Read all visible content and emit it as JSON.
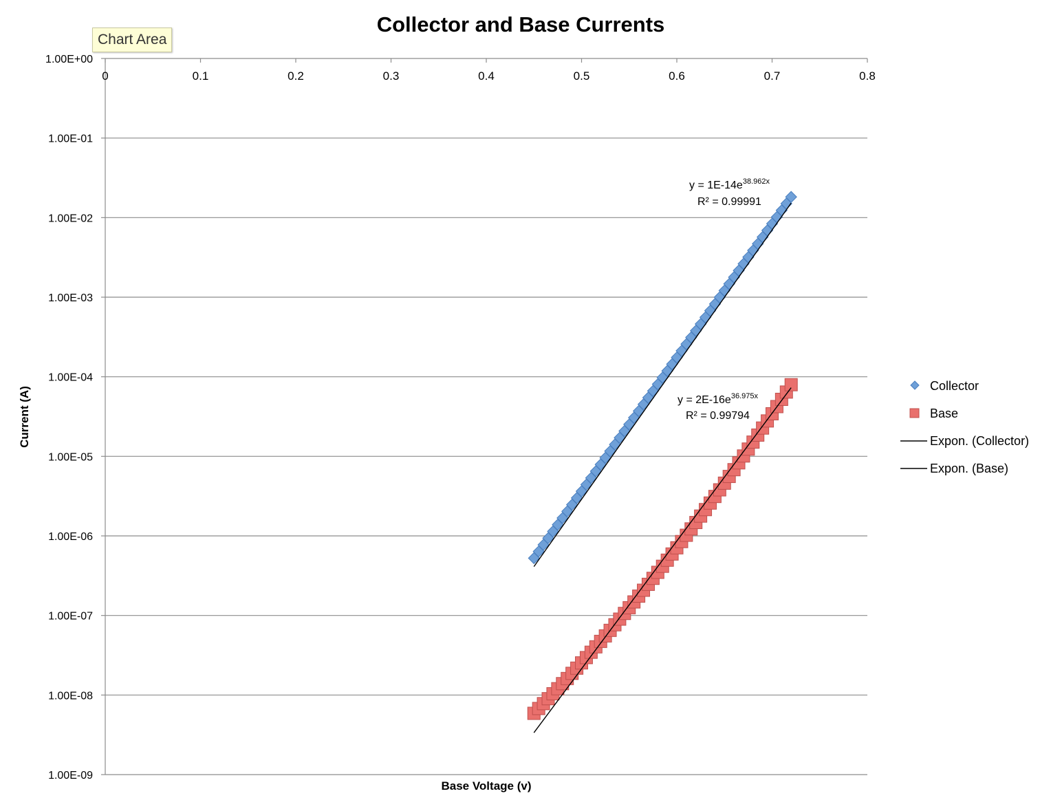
{
  "tooltip": {
    "text": "Chart Area"
  },
  "chart_data": {
    "type": "scatter",
    "title": "Collector and Base Currents",
    "xlabel": "Base Voltage (v)",
    "ylabel": "Current (A)",
    "xlim": [
      0,
      0.8
    ],
    "ylim": [
      1e-09,
      1
    ],
    "yscale": "log",
    "x_ticks": [
      0,
      0.1,
      0.2,
      0.3,
      0.4,
      0.5,
      0.6,
      0.7,
      0.8
    ],
    "x_tick_labels": [
      "0",
      "0.1",
      "0.2",
      "0.3",
      "0.4",
      "0.5",
      "0.6",
      "0.7",
      "0.8"
    ],
    "y_ticks": [
      1,
      0.1,
      0.01,
      0.001,
      0.0001,
      1e-05,
      1e-06,
      1e-07,
      1e-08,
      1e-09
    ],
    "y_tick_labels": [
      "1.00E+00",
      "1.00E-01",
      "1.00E-02",
      "1.00E-03",
      "1.00E-04",
      "1.00E-05",
      "1.00E-06",
      "1.00E-07",
      "1.00E-08",
      "1.00E-09"
    ],
    "x_axis_position": "top",
    "grid": {
      "horizontal": true,
      "vertical": false
    },
    "legend_position": "right",
    "series": [
      {
        "name": "Collector",
        "marker": "diamond",
        "color": "#6fa0d8",
        "edge_color": "#4a7fbf",
        "x_range": [
          0.45,
          0.72
        ],
        "x_step": 0.005,
        "log10_y_start": -6.28,
        "log10_y_end": -1.74
      },
      {
        "name": "Base",
        "marker": "square",
        "color": "#e9706d",
        "edge_color": "#c0504d",
        "x_range": [
          0.45,
          0.72
        ],
        "x_step": 0.005,
        "log10_y_start": -8.23,
        "log10_y_end": -4.1,
        "curvature": 0.35
      }
    ],
    "trendlines": [
      {
        "name": "Expon. (Collector)",
        "type": "exponential",
        "series": "Collector",
        "a": 1e-14,
        "b": 38.962,
        "x_range": [
          0.45,
          0.72
        ],
        "color": "#000000",
        "equation_prefix": "y = 1E-14e",
        "equation_exponent": "38.962x",
        "r2_text": "R² = 0.99991"
      },
      {
        "name": "Expon. (Base)",
        "type": "exponential",
        "series": "Base",
        "a": 2e-16,
        "b": 36.975,
        "x_range": [
          0.45,
          0.72
        ],
        "color": "#000000",
        "equation_prefix": "y = 2E-16e",
        "equation_exponent": "36.975x",
        "r2_text": "R² = 0.99794"
      }
    ],
    "legend": [
      "Collector",
      "Base",
      "Expon. (Collector)",
      "Expon. (Base)"
    ]
  }
}
